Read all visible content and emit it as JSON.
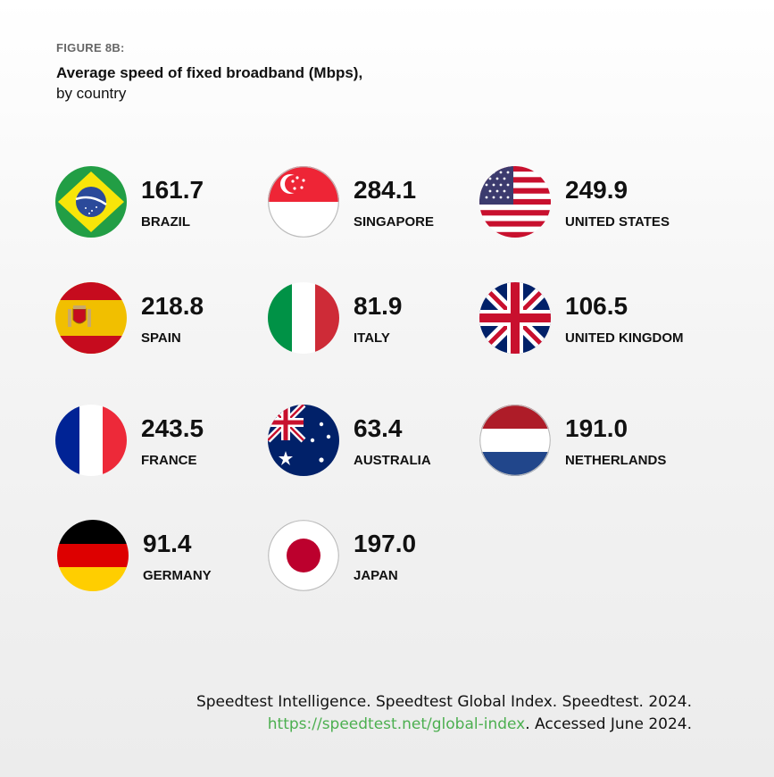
{
  "figure_label": "FIGURE 8B:",
  "title": "Average speed of fixed broadband (Mbps),",
  "subtitle": "by country",
  "chart_data": {
    "type": "table",
    "title": "Average speed of fixed broadband (Mbps),",
    "subtitle": "by country",
    "categories": [
      "BRAZIL",
      "SINGAPORE",
      "UNITED STATES",
      "SPAIN",
      "ITALY",
      "UNITED KINGDOM",
      "FRANCE",
      "AUSTRALIA",
      "NETHERLANDS",
      "GERMANY",
      "JAPAN"
    ],
    "values": [
      "161.7",
      "284.1",
      "249.9",
      "218.8",
      "81.9",
      "106.5",
      "243.5",
      "63.4",
      "191.0",
      "91.4",
      "197.0"
    ]
  },
  "items": [
    {
      "value": "161.7",
      "name": "BRAZIL",
      "icon": "brazil-flag-icon"
    },
    {
      "value": "284.1",
      "name": "SINGAPORE",
      "icon": "singapore-flag-icon"
    },
    {
      "value": "249.9",
      "name": "UNITED STATES",
      "icon": "united-states-flag-icon"
    },
    {
      "value": "218.8",
      "name": "SPAIN",
      "icon": "spain-flag-icon"
    },
    {
      "value": "81.9",
      "name": "ITALY",
      "icon": "italy-flag-icon"
    },
    {
      "value": "106.5",
      "name": "UNITED KINGDOM",
      "icon": "united-kingdom-flag-icon"
    },
    {
      "value": "243.5",
      "name": "FRANCE",
      "icon": "france-flag-icon"
    },
    {
      "value": "63.4",
      "name": "AUSTRALIA",
      "icon": "australia-flag-icon"
    },
    {
      "value": "191.0",
      "name": "NETHERLANDS",
      "icon": "netherlands-flag-icon"
    },
    {
      "value": "91.4",
      "name": "GERMANY",
      "icon": "germany-flag-icon"
    },
    {
      "value": "197.0",
      "name": "JAPAN",
      "icon": "japan-flag-icon"
    }
  ],
  "source": {
    "line1": "Speedtest Intelligence. Speedtest Global Index. Speedtest. 2024.",
    "link": "https://speedtest.net/global-index",
    "line2_suffix": ". Accessed June 2024."
  }
}
